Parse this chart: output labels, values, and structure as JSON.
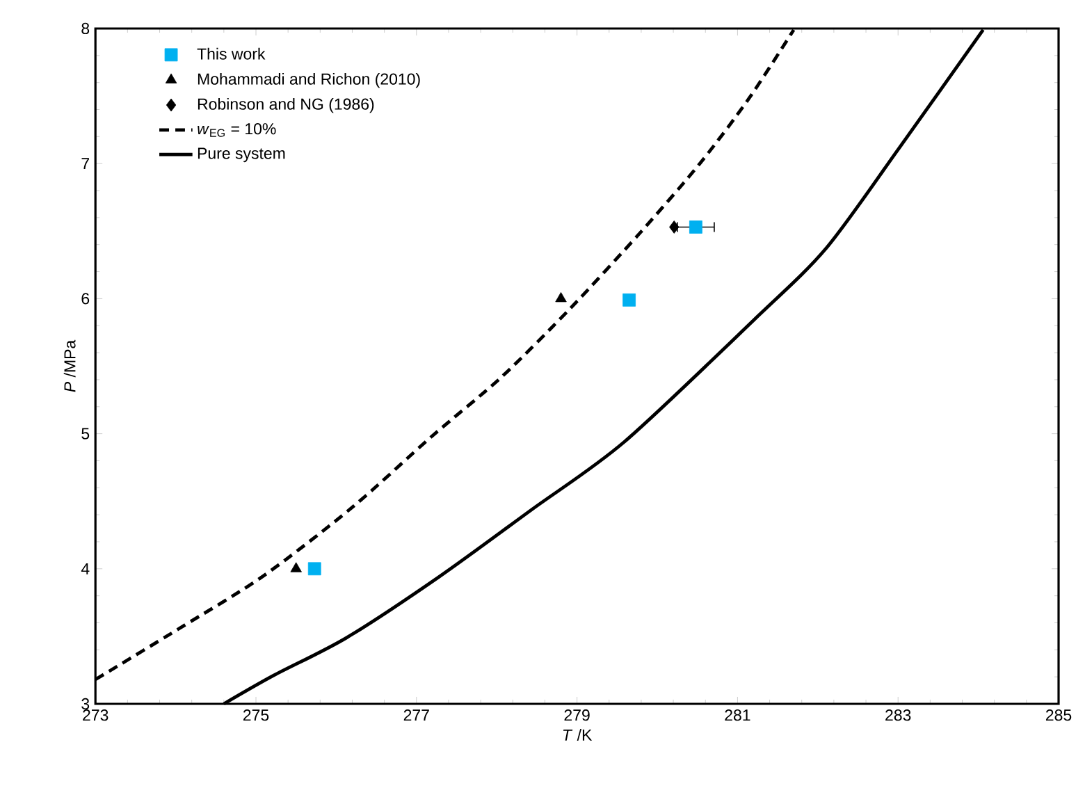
{
  "chart_data": {
    "type": "scatter",
    "xlabel": "*T* /K",
    "ylabel": "*P* /MPa",
    "xlim": [
      273,
      285
    ],
    "xticks": [
      273,
      275,
      277,
      279,
      281,
      283,
      285
    ],
    "ylim": [
      3,
      8
    ],
    "yticks": [
      3,
      4,
      5,
      6,
      7,
      8
    ],
    "legend": "top left",
    "series": [
      {
        "name": "This work",
        "marker": "square",
        "color": "#00b0f0",
        "x": [
          275.73,
          279.65,
          280.48
        ],
        "values": [
          4.0,
          5.99,
          6.53
        ],
        "xerrors": [
          null,
          null,
          0.23
        ]
      },
      {
        "name": "Mohammadi and Richon (2010)",
        "marker": "triangle",
        "color": "#000000",
        "x": [
          275.5,
          278.8
        ],
        "values": [
          4.0,
          6.0
        ]
      },
      {
        "name": "Robinson and NG (1986)",
        "marker": "diamond",
        "color": "#000000",
        "x": [
          280.21
        ],
        "values": [
          6.53
        ]
      },
      {
        "name": "*w*$_{EG}$ = 10%",
        "type": "line",
        "line_style": "dashed",
        "color": "#000000",
        "x": [
          273,
          274.05,
          275.1,
          276.21,
          277.19,
          278.06,
          278.92,
          279.79,
          280.53,
          281.14,
          281.7
        ],
        "values": [
          3.18,
          3.56,
          3.95,
          4.46,
          4.98,
          5.42,
          5.93,
          6.49,
          7.0,
          7.48,
          7.99
        ]
      },
      {
        "name": "Pure system",
        "type": "line",
        "line_style": "solid",
        "color": "#000000",
        "x": [
          274.6,
          275.22,
          276.13,
          277.28,
          278.44,
          279.59,
          281.2,
          282.1,
          283.02,
          284.06
        ],
        "values": [
          3.0,
          3.21,
          3.49,
          3.94,
          4.44,
          4.94,
          5.84,
          6.37,
          7.12,
          7.99
        ]
      }
    ]
  }
}
